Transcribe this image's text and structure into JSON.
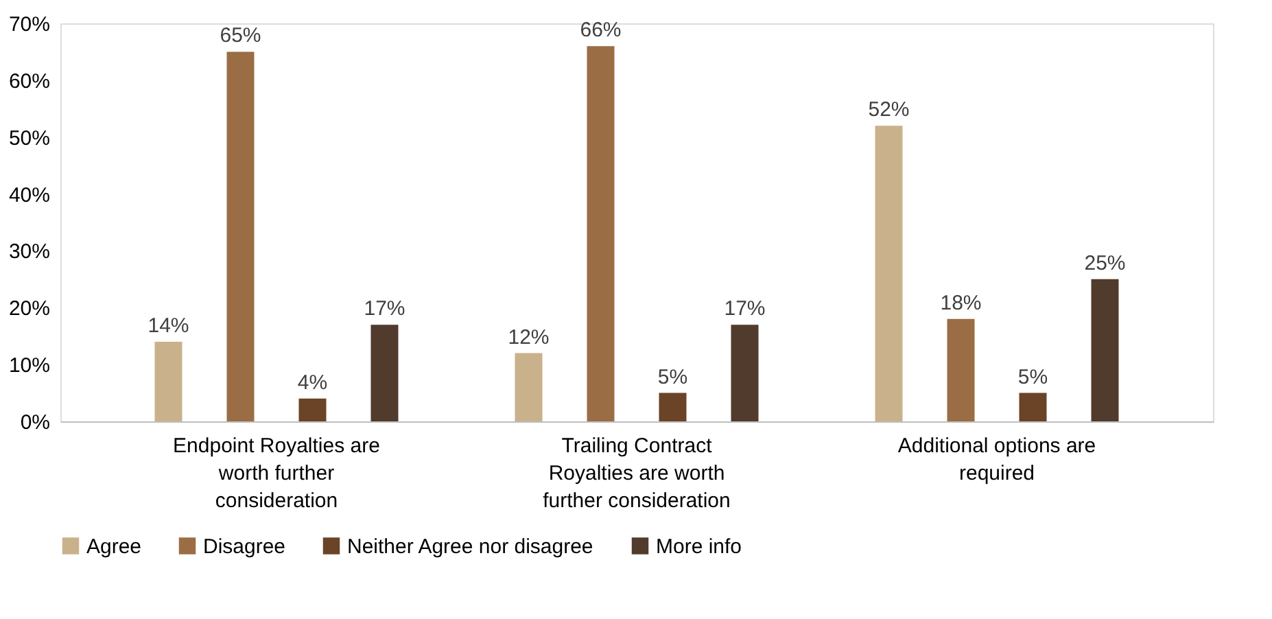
{
  "chart_data": {
    "type": "bar",
    "categories": [
      "Endpoint Royalties are worth further consideration",
      "Trailing Contract Royalties are worth further consideration",
      "Additional options are required"
    ],
    "series": [
      {
        "name": "Agree",
        "color": "#c9b28b",
        "values": [
          14,
          12,
          52
        ],
        "value_labels": [
          "14%",
          "12%",
          "52%"
        ]
      },
      {
        "name": "Disagree",
        "color": "#9a6d45",
        "values": [
          65,
          66,
          18
        ],
        "value_labels": [
          "65%",
          "66%",
          "18%"
        ]
      },
      {
        "name": "Neither Agree nor disagree",
        "color": "#6b4327",
        "values": [
          4,
          5,
          5
        ],
        "value_labels": [
          "4%",
          "5%",
          "5%"
        ]
      },
      {
        "name": "More info",
        "color": "#513b2c",
        "values": [
          17,
          17,
          25
        ],
        "value_labels": [
          "17%",
          "17%",
          "25%"
        ]
      }
    ],
    "ylim": [
      0,
      70
    ],
    "yticks": [
      {
        "value": 0,
        "label": "0%"
      },
      {
        "value": 10,
        "label": "10%"
      },
      {
        "value": 20,
        "label": "20%"
      },
      {
        "value": 30,
        "label": "30%"
      },
      {
        "value": 40,
        "label": "40%"
      },
      {
        "value": 50,
        "label": "50%"
      },
      {
        "value": 60,
        "label": "60%"
      },
      {
        "value": 70,
        "label": "70%"
      }
    ],
    "grid": false,
    "legend": "bottom"
  }
}
